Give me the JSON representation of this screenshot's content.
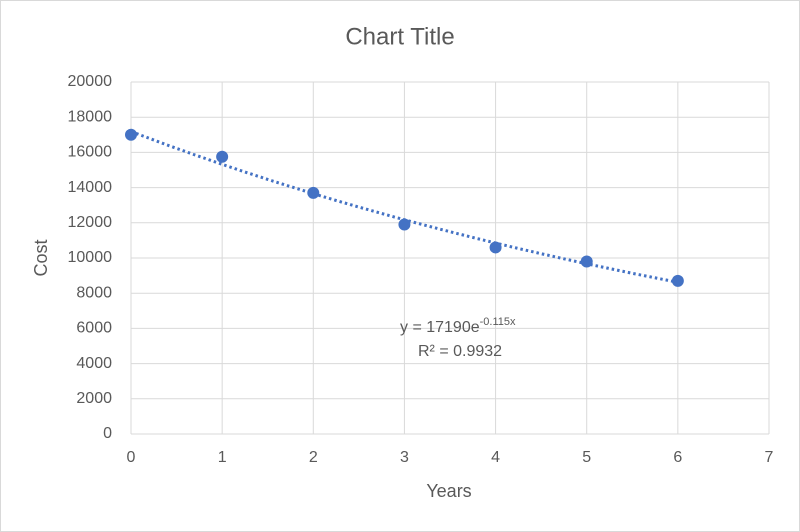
{
  "chart_data": {
    "type": "scatter",
    "title": "Chart Title",
    "x_label": "Years",
    "y_label": "Cost",
    "series": [
      {
        "name": "Cost",
        "color": "#4472c4",
        "x": [
          0,
          1,
          2,
          3,
          4,
          5,
          6
        ],
        "values": [
          17000,
          15750,
          13700,
          11900,
          10600,
          9800,
          8700
        ]
      }
    ],
    "trendline": {
      "type": "exponential",
      "a": 17190,
      "b": -0.115,
      "color": "#4472c4",
      "equation": "y = 17190e",
      "exponent": "-0.115x",
      "r_squared": "R² = 0.9932"
    },
    "xlim": [
      0,
      7
    ],
    "xticks": [
      0,
      1,
      2,
      3,
      4,
      5,
      6,
      7
    ],
    "ylim": [
      0,
      20000
    ],
    "yticks": [
      0,
      2000,
      4000,
      6000,
      8000,
      10000,
      12000,
      14000,
      16000,
      18000,
      20000
    ],
    "grid": true
  }
}
